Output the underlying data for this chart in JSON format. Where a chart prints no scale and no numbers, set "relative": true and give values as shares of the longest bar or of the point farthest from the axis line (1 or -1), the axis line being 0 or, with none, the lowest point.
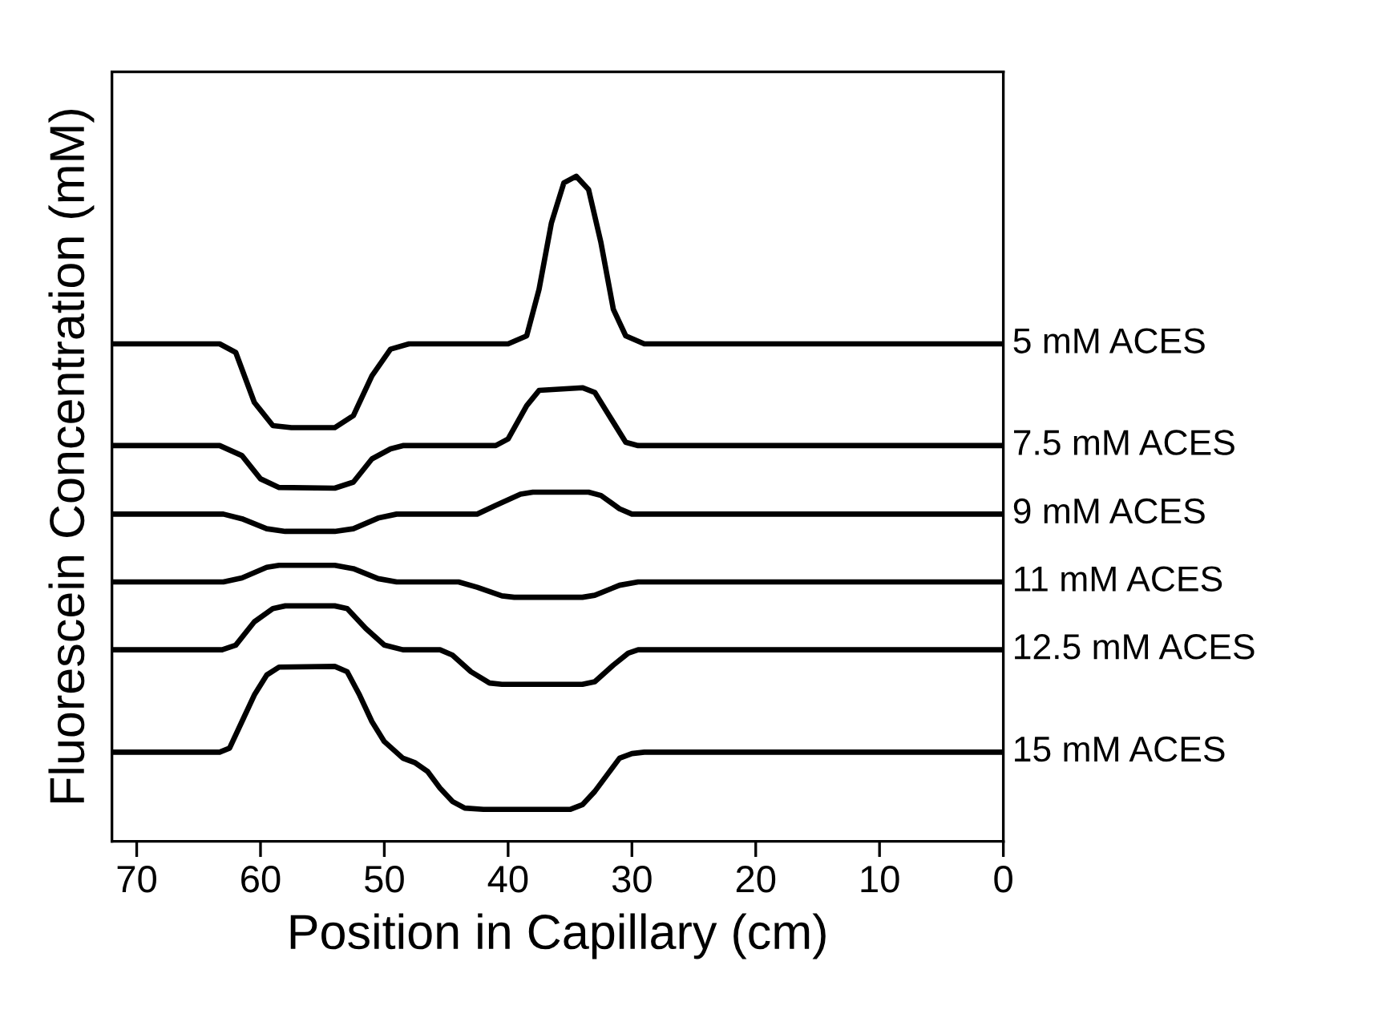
{
  "chart_data": {
    "type": "line",
    "relative": true,
    "xlabel": "Position in Capillary (cm)",
    "ylabel": "Fluorescein Concentration (mM)",
    "xlim": [
      72,
      0
    ],
    "xticks": [
      70,
      60,
      50,
      40,
      30,
      20,
      10,
      0
    ],
    "legend": false,
    "grid": false,
    "marker": "none",
    "line_style": "solid",
    "series": [
      {
        "name": "5 mM ACES",
        "color": "#000000",
        "x": [
          72,
          63.3,
          62,
          60.5,
          59,
          57.5,
          54,
          52.5,
          51,
          49.5,
          48,
          40,
          38.5,
          37.5,
          36.5,
          35.5,
          34.5,
          33.5,
          32.5,
          31.5,
          30.5,
          29,
          0
        ],
        "values": [
          0.748,
          0.748,
          0.735,
          0.66,
          0.625,
          0.622,
          0.622,
          0.64,
          0.7,
          0.74,
          0.748,
          0.748,
          0.76,
          0.83,
          0.93,
          0.99,
          1.0,
          0.98,
          0.9,
          0.8,
          0.76,
          0.748,
          0.748
        ]
      },
      {
        "name": "7.5 mM ACES",
        "color": "#000000",
        "x": [
          72,
          63.3,
          61.5,
          60,
          58.5,
          54,
          52.5,
          51,
          49.5,
          48.5,
          41,
          40,
          38.5,
          37.5,
          34,
          33,
          31.5,
          30.5,
          29.5,
          0
        ],
        "values": [
          0.595,
          0.595,
          0.58,
          0.545,
          0.532,
          0.531,
          0.54,
          0.575,
          0.59,
          0.595,
          0.595,
          0.605,
          0.655,
          0.678,
          0.682,
          0.675,
          0.63,
          0.6,
          0.595,
          0.595
        ]
      },
      {
        "name": "9 mM ACES",
        "color": "#000000",
        "x": [
          72,
          63,
          61.5,
          59.5,
          58,
          54,
          52.5,
          50.5,
          49,
          42.5,
          41,
          39,
          38,
          33.5,
          32.5,
          31,
          30,
          0
        ],
        "values": [
          0.492,
          0.492,
          0.485,
          0.47,
          0.466,
          0.466,
          0.47,
          0.486,
          0.492,
          0.492,
          0.505,
          0.522,
          0.525,
          0.525,
          0.52,
          0.5,
          0.492,
          0.492
        ]
      },
      {
        "name": "11 mM ACES",
        "color": "#000000",
        "x": [
          72,
          63,
          61.5,
          59.5,
          58.5,
          54,
          52.5,
          50.5,
          49,
          44,
          42.5,
          40.5,
          39.5,
          34,
          33,
          31,
          29.5,
          0
        ],
        "values": [
          0.39,
          0.39,
          0.396,
          0.412,
          0.415,
          0.415,
          0.41,
          0.395,
          0.39,
          0.39,
          0.382,
          0.369,
          0.367,
          0.367,
          0.37,
          0.385,
          0.39,
          0.39
        ]
      },
      {
        "name": "12.5 mM ACES",
        "color": "#000000",
        "x": [
          72,
          63.1,
          62,
          60.5,
          59,
          58,
          54,
          53,
          51.5,
          50,
          48.5,
          45.5,
          44.5,
          43,
          41.5,
          40.5,
          34,
          33,
          31.5,
          30.3,
          29.5,
          0
        ],
        "values": [
          0.288,
          0.288,
          0.295,
          0.33,
          0.35,
          0.354,
          0.354,
          0.35,
          0.32,
          0.295,
          0.288,
          0.288,
          0.28,
          0.255,
          0.238,
          0.236,
          0.236,
          0.24,
          0.265,
          0.283,
          0.288,
          0.288
        ]
      },
      {
        "name": "15 mM ACES",
        "color": "#000000",
        "x": [
          72,
          63.3,
          62.5,
          61.5,
          60.5,
          59.5,
          58.5,
          54,
          53,
          52,
          51,
          50,
          48.5,
          47.5,
          46.5,
          45.5,
          44.5,
          43.5,
          42,
          35,
          34,
          33,
          32,
          31,
          30,
          29,
          0
        ],
        "values": [
          0.134,
          0.134,
          0.14,
          0.18,
          0.22,
          0.25,
          0.262,
          0.263,
          0.255,
          0.22,
          0.18,
          0.15,
          0.125,
          0.118,
          0.105,
          0.08,
          0.06,
          0.05,
          0.048,
          0.048,
          0.055,
          0.075,
          0.1,
          0.125,
          0.132,
          0.134,
          0.134
        ]
      }
    ]
  }
}
